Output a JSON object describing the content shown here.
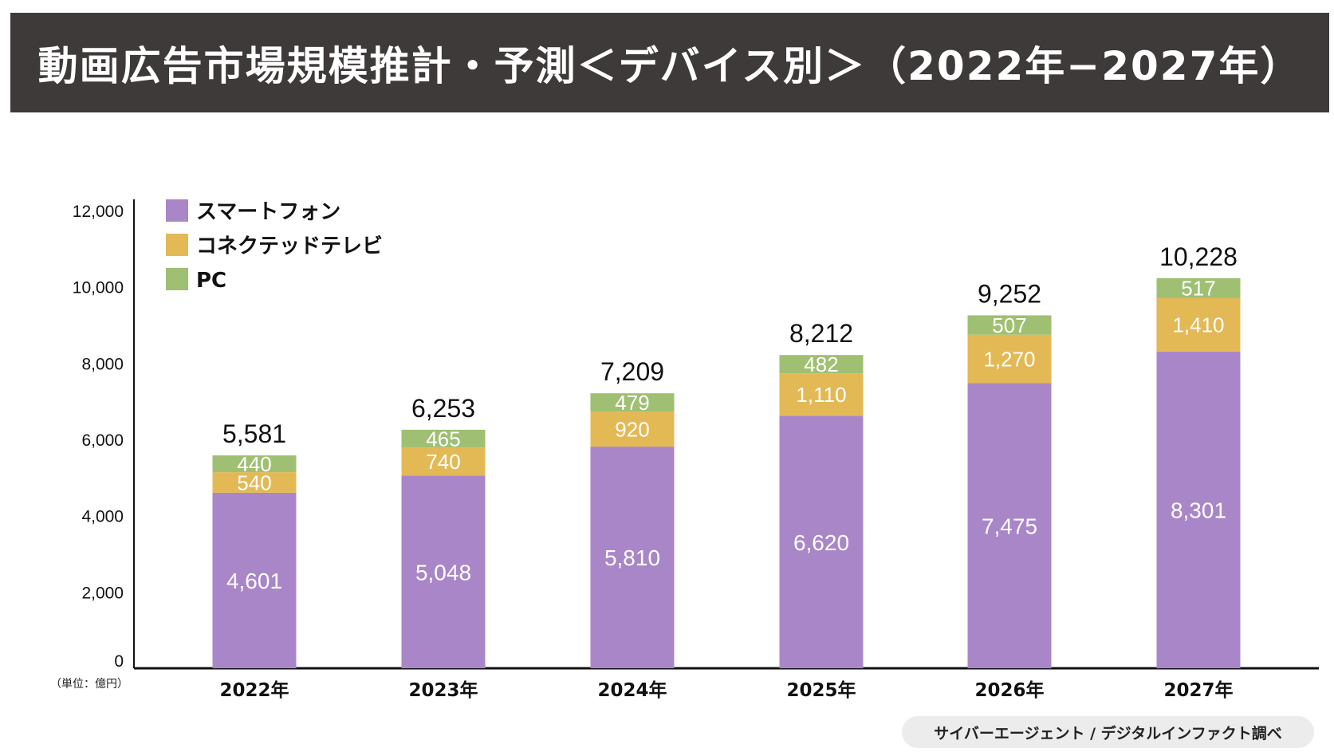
{
  "title": "動画広告市場規模推計・予測＜デバイス別＞（2022年−2027年）",
  "source": "サイバーエージェント / デジタルインファクト調べ",
  "chart_data": {
    "type": "bar",
    "stacked": true,
    "title": "動画広告市場規模推計・予測＜デバイス別＞（2022年−2027年）",
    "unit_label": "（単位：億円）",
    "categories": [
      "2022年",
      "2023年",
      "2024年",
      "2025年",
      "2026年",
      "2027年"
    ],
    "series": [
      {
        "name": "スマートフォン",
        "color": "#a986c8",
        "values": [
          4601,
          5048,
          5810,
          6620,
          7475,
          8301
        ]
      },
      {
        "name": "コネクテッドテレビ",
        "color": "#e3b956",
        "values": [
          540,
          740,
          920,
          1110,
          1270,
          1410
        ]
      },
      {
        "name": "PC",
        "color": "#9fbf72",
        "values": [
          440,
          465,
          479,
          482,
          507,
          517
        ]
      }
    ],
    "totals": [
      "5,581",
      "6,253",
      "7,209",
      "8,212",
      "9,252",
      "10,228"
    ],
    "value_labels": [
      [
        "4,601",
        "5,048",
        "5,810",
        "6,620",
        "7,475",
        "8,301"
      ],
      [
        "540",
        "740",
        "920",
        "1,110",
        "1,270",
        "1,410"
      ],
      [
        "440",
        "465",
        "479",
        "482",
        "507",
        "517"
      ]
    ],
    "yticks": [
      "0",
      "2,000",
      "4,000",
      "6,000",
      "8,000",
      "10,000",
      "12,000"
    ],
    "ylim": [
      0,
      12000
    ],
    "grid": false,
    "legend": "top-left"
  }
}
